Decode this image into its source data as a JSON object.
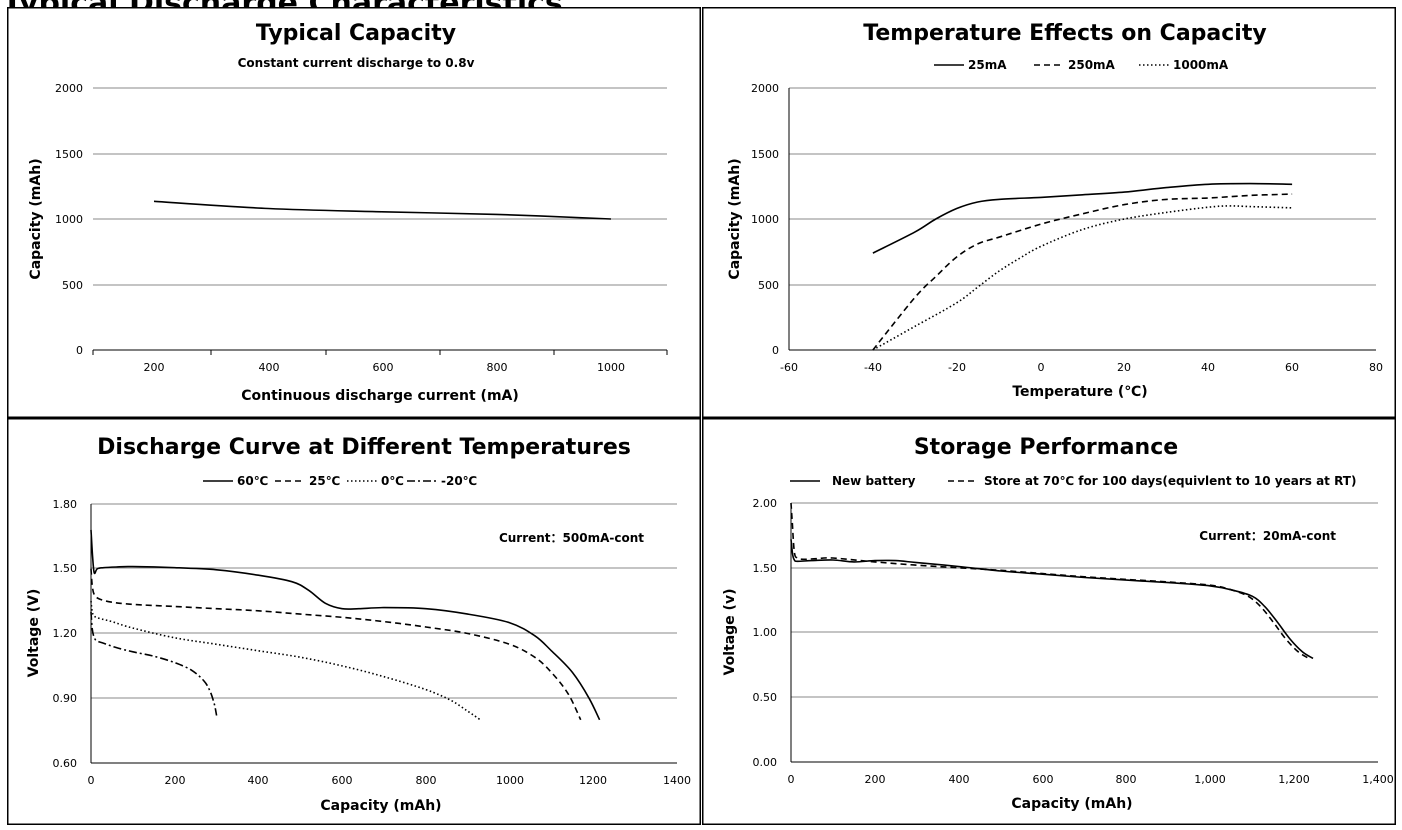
{
  "page": {
    "heading": "Typical Discharge Characteristics"
  },
  "chart_data": [
    {
      "id": "typical",
      "type": "line",
      "title": "Typical Capacity",
      "subtitle": "Constant current discharge to 0.8v",
      "xlabel": "Continuous discharge current  (mA)",
      "ylabel": "Capacity  (mAh)",
      "xcategories": [
        "200",
        "400",
        "600",
        "800",
        "1000"
      ],
      "ylim": [
        0,
        2000
      ],
      "yticks": [
        "0",
        "500",
        "1000",
        "1500",
        "2000"
      ],
      "grid": true,
      "series": [
        {
          "dash": "solid",
          "x": [
            200,
            400,
            600,
            800,
            1000
          ],
          "y": [
            1135,
            1080,
            1055,
            1035,
            1000
          ]
        }
      ]
    },
    {
      "id": "temperature",
      "type": "line",
      "title": "Temperature Effects on Capacity",
      "xlabel": "Temperature  (℃)",
      "ylabel": "Capacity  (mAh)",
      "xlim": [
        -60,
        80
      ],
      "xticks": [
        "-60",
        "-40",
        "-20",
        "0",
        "20",
        "40",
        "60",
        "80"
      ],
      "ylim": [
        0,
        2000
      ],
      "yticks": [
        "0",
        "500",
        "1000",
        "1500",
        "2000"
      ],
      "grid": true,
      "legend_position": "top",
      "series": [
        {
          "name": "25mA",
          "dash": "solid",
          "x": [
            -40,
            -30,
            -25,
            -20,
            -15,
            -10,
            0,
            10,
            20,
            30,
            40,
            50,
            60
          ],
          "y": [
            740,
            900,
            1000,
            1080,
            1130,
            1150,
            1165,
            1185,
            1205,
            1240,
            1265,
            1270,
            1265
          ]
        },
        {
          "name": "250mA",
          "dash": "dashed",
          "x": [
            -40,
            -30,
            -25,
            -20,
            -15,
            -10,
            0,
            10,
            20,
            30,
            40,
            50,
            60
          ],
          "y": [
            0,
            400,
            560,
            710,
            810,
            860,
            960,
            1040,
            1110,
            1150,
            1160,
            1180,
            1190
          ]
        },
        {
          "name": "1000mA",
          "dash": "dotted",
          "x": [
            -40,
            -30,
            -20,
            -15,
            -10,
            -5,
            0,
            10,
            20,
            30,
            40,
            45,
            50,
            60
          ],
          "y": [
            0,
            180,
            360,
            480,
            600,
            700,
            790,
            920,
            1000,
            1050,
            1090,
            1100,
            1095,
            1085
          ]
        }
      ]
    },
    {
      "id": "discharge",
      "type": "line",
      "title": "Discharge Curve at Different Temperatures",
      "xlabel": "Capacity  (mAh)",
      "ylabel": "Voltage  (V)",
      "xlim": [
        0,
        1400
      ],
      "xticks": [
        "0",
        "200",
        "400",
        "600",
        "800",
        "1000",
        "1200",
        "1400"
      ],
      "ylim": [
        0.6,
        1.8
      ],
      "yticks": [
        "0.60",
        "0.90",
        "1.20",
        "1.50",
        "1.80"
      ],
      "grid": true,
      "legend_position": "top",
      "annotation": "Current：500mA-cont",
      "series": [
        {
          "name": "60℃",
          "dash": "solid",
          "x": [
            0,
            4,
            8,
            15,
            30,
            60,
            100,
            200,
            300,
            400,
            480,
            520,
            560,
            600,
            640,
            700,
            800,
            900,
            1000,
            1060,
            1100,
            1150,
            1190,
            1215
          ],
          "y": [
            1.68,
            1.55,
            1.48,
            1.5,
            1.505,
            1.508,
            1.51,
            1.505,
            1.495,
            1.47,
            1.44,
            1.4,
            1.34,
            1.315,
            1.315,
            1.32,
            1.315,
            1.29,
            1.25,
            1.19,
            1.12,
            1.02,
            0.9,
            0.8
          ]
        },
        {
          "name": "25℃",
          "dash": "dashed",
          "x": [
            0,
            3,
            8,
            20,
            50,
            100,
            200,
            300,
            400,
            500,
            600,
            700,
            800,
            900,
            1000,
            1060,
            1100,
            1140,
            1170
          ],
          "y": [
            1.5,
            1.42,
            1.38,
            1.36,
            1.345,
            1.335,
            1.325,
            1.315,
            1.305,
            1.29,
            1.275,
            1.255,
            1.23,
            1.2,
            1.15,
            1.09,
            1.02,
            0.92,
            0.8
          ]
        },
        {
          "name": "0℃",
          "dash": "dotted",
          "x": [
            0,
            3,
            8,
            20,
            50,
            100,
            200,
            300,
            400,
            500,
            600,
            700,
            800,
            860,
            900,
            930
          ],
          "y": [
            1.35,
            1.3,
            1.28,
            1.27,
            1.255,
            1.225,
            1.18,
            1.15,
            1.12,
            1.09,
            1.05,
            1.0,
            0.94,
            0.89,
            0.84,
            0.8
          ]
        },
        {
          "name": "-20℃",
          "dash": "dashdot",
          "x": [
            0,
            3,
            8,
            15,
            30,
            60,
            100,
            150,
            200,
            240,
            270,
            285,
            295,
            300
          ],
          "y": [
            1.3,
            1.22,
            1.18,
            1.165,
            1.155,
            1.135,
            1.115,
            1.095,
            1.065,
            1.03,
            0.98,
            0.93,
            0.87,
            0.82
          ]
        }
      ]
    },
    {
      "id": "storage",
      "type": "line",
      "title": "Storage Performance",
      "xlabel": "Capacity  (mAh)",
      "ylabel": "Voltage  (v)",
      "xlim": [
        0,
        1400
      ],
      "xticks": [
        "0",
        "200",
        "400",
        "600",
        "800",
        "1,000",
        "1,200",
        "1,400"
      ],
      "ylim": [
        0,
        2
      ],
      "yticks": [
        "0.00",
        "0.50",
        "1.00",
        "1.50",
        "2.00"
      ],
      "grid": true,
      "legend_position": "top",
      "annotation": "Current：20mA-cont",
      "series": [
        {
          "name": "New battery",
          "dash": "solid",
          "x": [
            0,
            4,
            8,
            15,
            50,
            100,
            150,
            200,
            250,
            300,
            400,
            500,
            600,
            700,
            800,
            900,
            1000,
            1050,
            1100,
            1130,
            1160,
            1190,
            1220,
            1245
          ],
          "y": [
            1.72,
            1.6,
            1.56,
            1.55,
            1.555,
            1.56,
            1.545,
            1.555,
            1.555,
            1.54,
            1.51,
            1.475,
            1.45,
            1.425,
            1.405,
            1.385,
            1.36,
            1.33,
            1.28,
            1.2,
            1.08,
            0.95,
            0.85,
            0.8
          ]
        },
        {
          "name": "Store at 70℃ for 100 days(equivlent to 10 years at RT)",
          "dash": "dashed",
          "x": [
            0,
            3,
            8,
            15,
            30,
            60,
            100,
            200,
            300,
            400,
            500,
            600,
            700,
            800,
            900,
            1000,
            1050,
            1090,
            1120,
            1150,
            1180,
            1210,
            1235
          ],
          "y": [
            2.0,
            1.85,
            1.62,
            1.575,
            1.565,
            1.57,
            1.575,
            1.545,
            1.52,
            1.5,
            1.48,
            1.455,
            1.43,
            1.41,
            1.39,
            1.365,
            1.33,
            1.28,
            1.2,
            1.08,
            0.95,
            0.85,
            0.8
          ]
        }
      ]
    }
  ]
}
